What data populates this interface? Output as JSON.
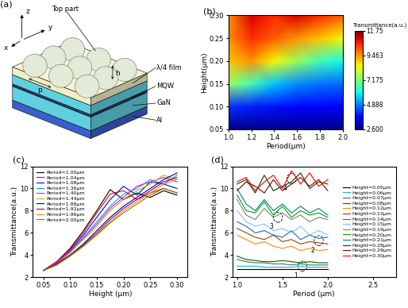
{
  "chart_data": [
    {
      "type": "diagram",
      "panel_label": "(a)",
      "labels": {
        "z": "z",
        "x": "x",
        "y": "y",
        "top": "Top part",
        "h": "h",
        "p": "p",
        "film": "λ/4 film",
        "mqw": "MQW",
        "gan": "GaN",
        "al": "Al"
      }
    },
    {
      "type": "heatmap",
      "panel_label": "(b)",
      "x_label": "Period(μm)",
      "y_label": "Height(μm)",
      "x": [
        1.0,
        1.2,
        1.4,
        1.6,
        1.8,
        2.0
      ],
      "y": [
        0.05,
        0.1,
        0.15,
        0.2,
        0.25,
        0.3
      ],
      "cells": [
        [
          2.7,
          2.7,
          2.7,
          2.7,
          2.7,
          2.7
        ],
        [
          4.2,
          4.0,
          3.9,
          3.8,
          3.7,
          3.7
        ],
        [
          7.5,
          6.5,
          5.5,
          5.0,
          4.8,
          4.7
        ],
        [
          9.0,
          9.5,
          8.5,
          7.5,
          6.5,
          6.0
        ],
        [
          9.5,
          10.5,
          10.0,
          9.5,
          9.0,
          8.5
        ],
        [
          9.5,
          11.0,
          10.5,
          11.0,
          10.5,
          10.0
        ]
      ],
      "xlim": [
        1.0,
        2.0
      ],
      "ylim": [
        0.05,
        0.3
      ],
      "xticks": [
        1.0,
        1.2,
        1.4,
        1.6,
        1.8,
        2.0
      ],
      "yticks": [
        0.05,
        {
          "value": 0.1,
          "label": "0.10"
        },
        0.15,
        {
          "value": 0.2,
          "label": "0.20"
        },
        0.25,
        {
          "value": 0.3,
          "label": "0.30"
        }
      ],
      "colorbar_title": "Transmittance(a.u.)",
      "colorbar_range": [
        2.6,
        11.75
      ],
      "colorbar_ticks": [
        {
          "value": 2.6,
          "label": "2.600"
        },
        4.888,
        7.175,
        9.463,
        11.75
      ]
    },
    {
      "type": "line",
      "panel_label": "(c)",
      "x_label": "Height (μm)",
      "y_label": "Transmittance(a.u.)",
      "x": [
        0.05,
        0.075,
        0.1,
        0.125,
        0.15,
        0.175,
        0.2,
        0.225,
        0.25,
        0.275,
        0.3
      ],
      "series": [
        {
          "name": "Period=1.00μm",
          "color": "#000000",
          "values": [
            2.6,
            3.4,
            4.6,
            6.2,
            8.0,
            9.9,
            9.0,
            9.6,
            9.2,
            9.8,
            9.4
          ]
        },
        {
          "name": "Period=1.04μm",
          "color": "#ff0000",
          "values": [
            2.6,
            3.4,
            4.5,
            6.0,
            7.8,
            9.5,
            9.8,
            9.0,
            9.6,
            10.0,
            9.6
          ]
        },
        {
          "name": "Period=1.08μm",
          "color": "#0000ff",
          "values": [
            2.6,
            3.3,
            4.4,
            5.8,
            7.4,
            9.0,
            10.2,
            9.4,
            10.6,
            10.4,
            10.0
          ]
        },
        {
          "name": "Period=1.36μm",
          "color": "#00b0b0",
          "values": [
            2.6,
            3.3,
            4.3,
            5.6,
            7.0,
            8.4,
            9.5,
            10.0,
            10.8,
            10.4,
            11.2
          ]
        },
        {
          "name": "Period=1.40μm",
          "color": "#ff00ff",
          "values": [
            2.6,
            3.3,
            4.3,
            5.5,
            6.8,
            8.2,
            9.2,
            10.2,
            10.6,
            11.0,
            10.6
          ]
        },
        {
          "name": "Period=1.44μm",
          "color": "#a0c000",
          "values": [
            2.6,
            3.2,
            4.2,
            5.4,
            6.6,
            8.0,
            9.0,
            9.8,
            10.4,
            11.2,
            10.8
          ]
        },
        {
          "name": "Period=1.88μm",
          "color": "#000080",
          "values": [
            2.6,
            3.2,
            4.0,
            5.0,
            6.2,
            7.4,
            8.4,
            9.2,
            10.0,
            10.8,
            11.4
          ]
        },
        {
          "name": "Period=1.92μm",
          "color": "#800080",
          "values": [
            2.6,
            3.2,
            4.0,
            4.9,
            6.0,
            7.2,
            8.2,
            9.0,
            9.8,
            10.6,
            11.0
          ]
        },
        {
          "name": "Period=1.96μm",
          "color": "#ff8000",
          "values": [
            2.6,
            3.1,
            3.9,
            4.8,
            5.9,
            7.0,
            8.0,
            8.8,
            9.6,
            10.4,
            10.8
          ]
        },
        {
          "name": "Period=2.00μm",
          "color": "#808000",
          "values": [
            2.6,
            3.1,
            3.9,
            4.8,
            5.8,
            6.9,
            7.8,
            8.6,
            9.4,
            10.0,
            9.6
          ]
        }
      ],
      "xlim": [
        0.03,
        0.32
      ],
      "ylim": [
        2,
        12
      ],
      "xticks": [
        0.05,
        {
          "value": 0.1,
          "label": "0.10"
        },
        0.15,
        {
          "value": 0.2,
          "label": "0.20"
        },
        0.25,
        {
          "value": 0.3,
          "label": "0.30"
        }
      ],
      "yticks": [
        2,
        4,
        6,
        8,
        10,
        12
      ],
      "legend": "upper left"
    },
    {
      "type": "line",
      "panel_label": "(d)",
      "x_label": "Period (μm)",
      "y_label": "Transmittance(a.u.)",
      "x": [
        1.0,
        1.1,
        1.2,
        1.3,
        1.4,
        1.5,
        1.6,
        1.7,
        1.8,
        1.9,
        2.0
      ],
      "series": [
        {
          "name": "Height=0.05μm",
          "color": "#000000",
          "values": [
            2.7,
            2.7,
            2.7,
            2.7,
            2.7,
            2.7,
            2.7,
            2.7,
            2.7,
            2.7,
            2.7
          ]
        },
        {
          "name": "Height=0.06μm",
          "color": "#00c0c0",
          "values": [
            3.0,
            3.0,
            3.0,
            2.9,
            2.9,
            2.9,
            2.9,
            3.0,
            2.9,
            2.9,
            2.9
          ]
        },
        {
          "name": "Height=0.07μm",
          "color": "#606060",
          "values": [
            3.6,
            3.4,
            3.3,
            3.3,
            3.2,
            3.2,
            3.1,
            3.2,
            3.1,
            3.1,
            3.1
          ]
        },
        {
          "name": "Height=0.08μm",
          "color": "#006400",
          "values": [
            3.9,
            3.6,
            3.5,
            3.4,
            3.4,
            3.5,
            3.4,
            3.3,
            3.4,
            3.3,
            3.3
          ]
        },
        {
          "name": "Height=0.12μm",
          "color": "#ff8c00",
          "values": [
            5.8,
            5.4,
            5.0,
            5.2,
            4.8,
            4.6,
            4.8,
            4.4,
            4.6,
            4.4,
            4.5
          ]
        },
        {
          "name": "Height=0.13μm",
          "color": "#8b4513",
          "values": [
            6.4,
            6.0,
            5.6,
            5.4,
            5.8,
            5.2,
            5.4,
            5.0,
            5.2,
            5.1,
            5.0
          ]
        },
        {
          "name": "Height=0.14μm",
          "color": "#3060c0",
          "values": [
            7.0,
            6.6,
            6.0,
            6.2,
            5.8,
            5.6,
            6.2,
            5.4,
            5.8,
            5.5,
            5.6
          ]
        },
        {
          "name": "Height=0.15μm",
          "color": "#80c0ff",
          "values": [
            8.0,
            7.0,
            6.6,
            6.8,
            6.2,
            6.4,
            6.0,
            6.6,
            5.8,
            6.2,
            5.8
          ]
        },
        {
          "name": "Height=0.19μm",
          "color": "#808080",
          "values": [
            9.0,
            7.6,
            7.2,
            8.2,
            7.4,
            7.8,
            7.2,
            7.6,
            7.0,
            7.4,
            7.2
          ]
        },
        {
          "name": "Height=0.20μm",
          "color": "#00a000",
          "values": [
            9.4,
            8.0,
            7.8,
            8.8,
            7.6,
            8.4,
            7.4,
            8.0,
            7.6,
            7.8,
            7.4
          ]
        },
        {
          "name": "Height=0.21μm",
          "color": "#008080",
          "values": [
            10.0,
            8.6,
            8.0,
            9.0,
            8.0,
            8.6,
            7.8,
            8.4,
            7.8,
            8.2,
            7.6
          ]
        },
        {
          "name": "Height=0.28μm",
          "color": "#004000",
          "values": [
            10.4,
            10.8,
            9.6,
            11.2,
            9.8,
            10.2,
            10.6,
            11.4,
            10.0,
            10.6,
            10.4
          ]
        },
        {
          "name": "Height=0.29μm",
          "color": "#800000",
          "values": [
            9.8,
            10.6,
            10.2,
            9.6,
            10.8,
            9.8,
            10.4,
            11.0,
            10.2,
            10.8,
            9.8
          ]
        },
        {
          "name": "Height=0.30μm",
          "color": "#ff0000",
          "values": [
            10.6,
            11.0,
            9.8,
            10.6,
            11.2,
            10.0,
            11.6,
            10.4,
            11.4,
            10.2,
            10.8
          ]
        }
      ],
      "xlim": [
        0.95,
        2.75
      ],
      "ylim": [
        2,
        12
      ],
      "xticks": [
        1.0,
        1.5,
        2.0,
        2.5
      ],
      "yticks": [
        2,
        4,
        6,
        8,
        10,
        12
      ],
      "legend": "center right",
      "annotations": [
        {
          "text": "1",
          "x": 1.72,
          "y": 3.0
        },
        {
          "text": "2",
          "x": 1.9,
          "y": 5.3
        },
        {
          "text": "3",
          "x": 1.45,
          "y": 7.4
        },
        {
          "text": "4",
          "x": 1.6,
          "y": 10.9
        }
      ]
    }
  ]
}
